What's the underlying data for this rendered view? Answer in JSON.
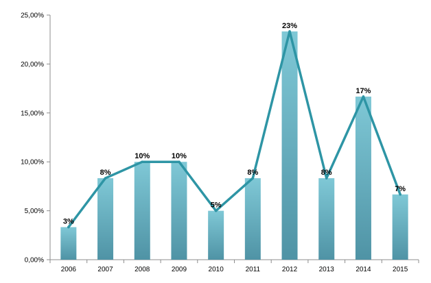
{
  "chart_data": {
    "type": "bar",
    "title": "",
    "xlabel": "",
    "ylabel": "",
    "categories": [
      "2006",
      "2007",
      "2008",
      "2009",
      "2010",
      "2011",
      "2012",
      "2013",
      "2014",
      "2015"
    ],
    "values": [
      3.33,
      8.33,
      10.0,
      10.0,
      5.0,
      8.33,
      23.33,
      8.33,
      16.67,
      6.67
    ],
    "data_labels": [
      "3%",
      "8%",
      "10%",
      "10%",
      "5%",
      "8%",
      "23%",
      "8%",
      "17%",
      "7%"
    ],
    "overlay_line": {
      "type": "line",
      "values": [
        3.33,
        8.33,
        10.0,
        10.0,
        5.0,
        8.33,
        23.33,
        8.33,
        16.67,
        6.67
      ],
      "color": "#2E95A5"
    },
    "y_ticks": [
      0,
      5,
      10,
      15,
      20,
      25
    ],
    "y_tick_labels": [
      "0,00%",
      "5,00%",
      "10,00%",
      "15,00%",
      "20,00%",
      "25,00%"
    ],
    "ylim": [
      0,
      25
    ],
    "grid": false,
    "legend": "none",
    "colors": {
      "bar_top": "#7FC8D6",
      "bar_bottom": "#4F93A5",
      "line": "#2E95A5",
      "axis": "#8C8C8C"
    }
  }
}
